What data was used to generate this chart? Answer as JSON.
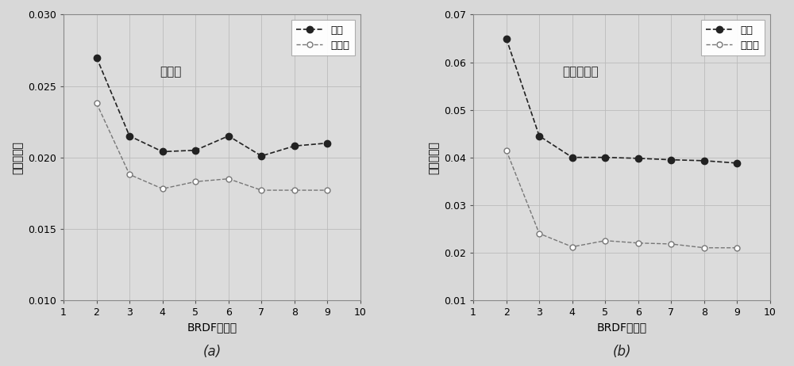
{
  "x": [
    2,
    3,
    4,
    5,
    6,
    7,
    8,
    9
  ],
  "red_mean": [
    0.027,
    0.0215,
    0.0204,
    0.0205,
    0.0215,
    0.0201,
    0.0208,
    0.021
  ],
  "red_std": [
    0.0238,
    0.0188,
    0.0178,
    0.0183,
    0.0185,
    0.0177,
    0.0177,
    0.0177
  ],
  "nir_mean": [
    0.065,
    0.0445,
    0.04,
    0.04,
    0.0398,
    0.0395,
    0.0393,
    0.0388
  ],
  "nir_std": [
    0.0415,
    0.024,
    0.0212,
    0.0225,
    0.022,
    0.0218,
    0.021,
    0.021
  ],
  "xlabel": "BRDF原型数",
  "ylabel": "均方根误差",
  "legend_mean": "均値",
  "legend_std": "标准差",
  "title_a": "红波段",
  "title_b": "近红外波段",
  "label_a": "(a)",
  "label_b": "(b)",
  "xlim": [
    1,
    10
  ],
  "xticks": [
    1,
    2,
    3,
    4,
    5,
    6,
    7,
    8,
    9,
    10
  ],
  "ylim_a": [
    0.01,
    0.03
  ],
  "yticks_a": [
    0.01,
    0.015,
    0.02,
    0.025,
    0.03
  ],
  "ylim_b": [
    0.01,
    0.07
  ],
  "yticks_b": [
    0.01,
    0.02,
    0.03,
    0.04,
    0.05,
    0.06,
    0.07
  ],
  "line_color_mean": "#222222",
  "line_color_std": "#777777",
  "bg_color": "#dcdcdc",
  "fig_bg": "#d8d8d8"
}
